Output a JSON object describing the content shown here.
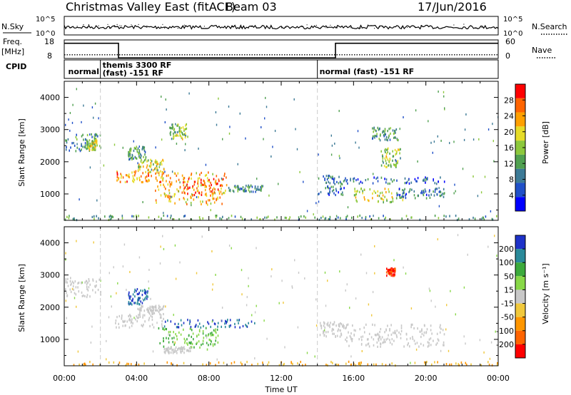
{
  "title": "Christmas Valley East (fitACF)",
  "beam": "Beam 03",
  "date": "17/Jun/2016",
  "nsky_panel": {
    "label": "N.Sky",
    "left_ticks": [
      "10^5",
      "10^0"
    ],
    "right_label": "N.Search",
    "right_ticks": [
      "10^5",
      "10^0"
    ],
    "legend_style": "dotted"
  },
  "freq_panel": {
    "label_line1": "Freq.",
    "label_line2": "[MHz]",
    "left_ticks": [
      "18",
      "8"
    ],
    "left_range": [
      8,
      18
    ],
    "right_label": "Nave",
    "right_ticks": [
      "60",
      "0"
    ],
    "right_range": [
      0,
      60
    ],
    "freq_steps": [
      {
        "t0": 0,
        "t1": 3.0,
        "value": 16.2
      },
      {
        "t0": 3.0,
        "t1": 15.0,
        "value": 8.3
      },
      {
        "t0": 15.0,
        "t1": 24.0,
        "value": 16.2
      }
    ],
    "nave_level": 12
  },
  "cpid_panel": {
    "label": "CPID",
    "segments": [
      {
        "t": 0.1,
        "line1": "normal",
        "line2": ""
      },
      {
        "t": 2.0,
        "line1": "themis 3300 RF",
        "line2": "(fast) -151 RF"
      },
      {
        "t": 14.0,
        "line1": "normal (fast) -151 RF",
        "line2": ""
      }
    ]
  },
  "chart_data": [
    {
      "type": "heatmap",
      "ylabel": "Slant Range [km]",
      "yticks": [
        1000,
        2000,
        3000,
        4000
      ],
      "ylim": [
        180,
        4500
      ],
      "xlim": [
        0,
        24
      ],
      "colorbar": {
        "label": "Power [dB]",
        "ticks": [
          4,
          8,
          12,
          16,
          20,
          24,
          28
        ],
        "range": [
          0,
          32
        ],
        "colors": [
          "#0000ff",
          "#2050c8",
          "#3c7a96",
          "#50a050",
          "#8cc83c",
          "#e6dc28",
          "#ffa000",
          "#ff6400",
          "#ff0000"
        ]
      },
      "regions": [
        {
          "t0": 0.0,
          "t1": 2.0,
          "r0": 2350,
          "r1": 2950,
          "v": 10
        },
        {
          "t0": 1.2,
          "t1": 1.8,
          "r0": 2400,
          "r1": 2700,
          "v": 18
        },
        {
          "t0": 2.8,
          "t1": 5.5,
          "r0": 1400,
          "r1": 1750,
          "v": 24
        },
        {
          "t0": 4.0,
          "t1": 5.5,
          "r0": 1700,
          "r1": 2100,
          "v": 18
        },
        {
          "t0": 5.0,
          "t1": 9.0,
          "r0": 700,
          "r1": 1700,
          "v": 22
        },
        {
          "t0": 6.5,
          "t1": 8.8,
          "r0": 1000,
          "r1": 1500,
          "v": 26
        },
        {
          "t0": 9.0,
          "t1": 11.0,
          "r0": 1100,
          "r1": 1300,
          "v": 10
        },
        {
          "t0": 3.5,
          "t1": 4.5,
          "r0": 2100,
          "r1": 2500,
          "v": 12
        },
        {
          "t0": 5.8,
          "t1": 6.8,
          "r0": 2700,
          "r1": 3200,
          "v": 16
        },
        {
          "t0": 14.0,
          "t1": 15.5,
          "r0": 1000,
          "r1": 1600,
          "v": 8
        },
        {
          "t0": 15.5,
          "t1": 21.0,
          "r0": 1350,
          "r1": 1550,
          "v": 7
        },
        {
          "t0": 16.0,
          "t1": 18.8,
          "r0": 750,
          "r1": 1200,
          "v": 18
        },
        {
          "t0": 17.5,
          "t1": 18.6,
          "r0": 1850,
          "r1": 2450,
          "v": 16
        },
        {
          "t0": 17.0,
          "t1": 18.5,
          "r0": 2700,
          "r1": 3100,
          "v": 12
        },
        {
          "t0": 18.5,
          "t1": 21.0,
          "r0": 900,
          "r1": 1200,
          "v": 8
        },
        {
          "t0": 0.0,
          "t1": 24.0,
          "r0": 180,
          "r1": 360,
          "v": 12
        }
      ]
    },
    {
      "type": "heatmap",
      "ylabel": "Slant Range [km]",
      "yticks": [
        1000,
        2000,
        3000,
        4000
      ],
      "ylim": [
        180,
        4500
      ],
      "xlim": [
        0,
        24
      ],
      "xticks": [
        "00:00",
        "04:00",
        "08:00",
        "12:00",
        "16:00",
        "20:00",
        "00:00"
      ],
      "xlabel": "Time UT",
      "colorbar": {
        "label": "Velocity [m s⁻¹]",
        "ticks": [
          "200",
          "100",
          "50",
          "15",
          "-15",
          "-50",
          "-100",
          "-200"
        ],
        "colors": [
          "#1e32c8",
          "#2a8a9a",
          "#3caa3c",
          "#88d848",
          "#c8c8c8",
          "#f0c83c",
          "#ff9600",
          "#ff6400",
          "#ff0000"
        ]
      },
      "regions": [
        {
          "t0": 0.0,
          "t1": 2.0,
          "r0": 2350,
          "r1": 2950,
          "v": 0
        },
        {
          "t0": 2.8,
          "t1": 5.5,
          "r0": 1400,
          "r1": 1800,
          "v": 0
        },
        {
          "t0": 4.0,
          "t1": 5.5,
          "r0": 1800,
          "r1": 2100,
          "v": 0
        },
        {
          "t0": 3.5,
          "t1": 4.6,
          "r0": 2100,
          "r1": 2600,
          "v": 200
        },
        {
          "t0": 5.0,
          "t1": 8.5,
          "r0": 700,
          "r1": 1400,
          "v": 50
        },
        {
          "t0": 5.5,
          "t1": 7.0,
          "r0": 600,
          "r1": 800,
          "v": 0
        },
        {
          "t0": 5.5,
          "t1": 10.5,
          "r0": 1400,
          "r1": 1650,
          "v": 200
        },
        {
          "t0": 14.0,
          "t1": 15.5,
          "r0": 1100,
          "r1": 1600,
          "v": 0
        },
        {
          "t0": 15.5,
          "t1": 21.0,
          "r0": 800,
          "r1": 1500,
          "v": 0
        },
        {
          "t0": 17.8,
          "t1": 18.3,
          "r0": 3000,
          "r1": 3250,
          "v": -200
        },
        {
          "t0": 0.0,
          "t1": 24.0,
          "r0": 180,
          "r1": 340,
          "v": -50
        }
      ]
    }
  ]
}
